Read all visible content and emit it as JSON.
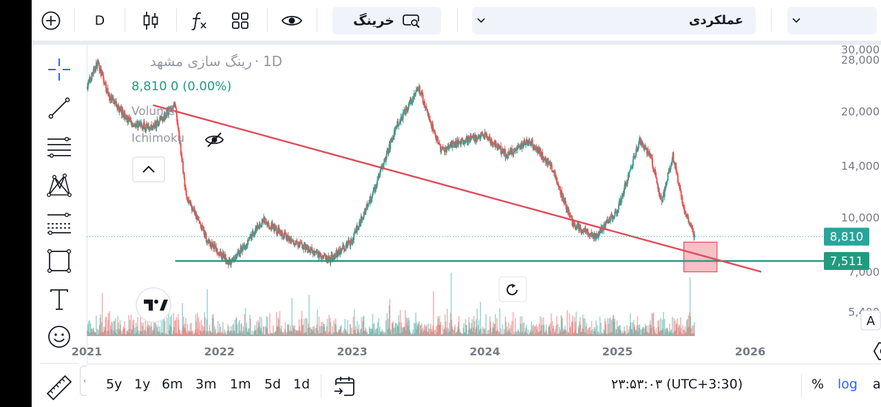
{
  "toolbar": {
    "interval": "D",
    "buy_label": "خرینگ",
    "layout_name": "عملکردی"
  },
  "legend": {
    "symbol": "رینگ سازی مشهد",
    "interval": "1D",
    "price": "8,810",
    "change": "0 (0.00%)",
    "indicators": [
      "Volume",
      "Ichimoku"
    ]
  },
  "chart_data": {
    "type": "candlestick",
    "y_scale": "log",
    "ylim": [
      4600,
      31000
    ],
    "y_ticks": [
      {
        "value": 30000,
        "label": "30,000"
      },
      {
        "value": 28000,
        "label": "28,000"
      },
      {
        "value": 20000,
        "label": "20,000"
      },
      {
        "value": 14000,
        "label": "14,000"
      },
      {
        "value": 10000,
        "label": "10,000"
      },
      {
        "value": 7000,
        "label": "7,000"
      },
      {
        "value": 5400,
        "label": "5,400"
      }
    ],
    "x_ticks": [
      "2021",
      "2022",
      "2023",
      "2024",
      "2025",
      "2026"
    ],
    "last_price": {
      "value": 8810,
      "label": "8,810"
    },
    "support_line": {
      "value": 7511,
      "label": "7,511"
    },
    "price_path": [
      [
        "2021-01",
        23500
      ],
      [
        "2021-02",
        27500
      ],
      [
        "2021-03",
        22000
      ],
      [
        "2021-05",
        18500
      ],
      [
        "2021-07",
        18000
      ],
      [
        "2021-09",
        21000
      ],
      [
        "2021-10",
        11500
      ],
      [
        "2021-12",
        8500
      ],
      [
        "2022-02",
        7400
      ],
      [
        "2022-05",
        9800
      ],
      [
        "2022-08",
        8400
      ],
      [
        "2022-11",
        7600
      ],
      [
        "2023-01",
        8600
      ],
      [
        "2023-03",
        12000
      ],
      [
        "2023-05",
        18000
      ],
      [
        "2023-07",
        23500
      ],
      [
        "2023-09",
        15500
      ],
      [
        "2023-11",
        16500
      ],
      [
        "2024-01",
        17000
      ],
      [
        "2024-03",
        15000
      ],
      [
        "2024-05",
        16500
      ],
      [
        "2024-07",
        14000
      ],
      [
        "2024-09",
        9500
      ],
      [
        "2024-11",
        8800
      ],
      [
        "2025-01",
        10500
      ],
      [
        "2025-03",
        16500
      ],
      [
        "2025-04",
        15000
      ],
      [
        "2025-05",
        11000
      ],
      [
        "2025-06",
        15000
      ],
      [
        "2025-07",
        10500
      ],
      [
        "2025-08",
        8810
      ]
    ],
    "trendline": {
      "from": [
        "2021-07",
        20800
      ],
      "to": [
        "2026-02",
        7000
      ]
    },
    "highlight_box": {
      "x_from": "2025-07",
      "x_to": "2025-10",
      "y_from": 7000,
      "y_to": 8500
    },
    "log_scale": true
  },
  "axis_badges": {
    "auto_scale": "A",
    "log_scale": "L"
  },
  "bottom": {
    "ranges": [
      "5y",
      "1y",
      "6m",
      "3m",
      "1m",
      "5d",
      "1d"
    ],
    "time": "۲۳:۵۳:۰۳ (UTC+3:30)",
    "percent": "%",
    "log": "log",
    "auto": "auto"
  },
  "colors": {
    "up": "#26a69a",
    "down": "#ef5350",
    "trendline": "#e04b5a",
    "support": "#1e9c7f",
    "highlight": "#f08c96",
    "accent": "#2962ff"
  },
  "icons": {
    "toolbar": [
      "plus-circle-icon",
      "candles-icon",
      "fx-icon",
      "grid-icon",
      "eye-icon",
      "search-icon",
      "chevron-down-icon"
    ],
    "tools": [
      "crosshair-icon",
      "trendline-icon",
      "fib-lines-icon",
      "pattern-icon",
      "forecast-icon",
      "rectangle-icon",
      "text-icon",
      "emoji-icon",
      "ruler-icon"
    ]
  }
}
